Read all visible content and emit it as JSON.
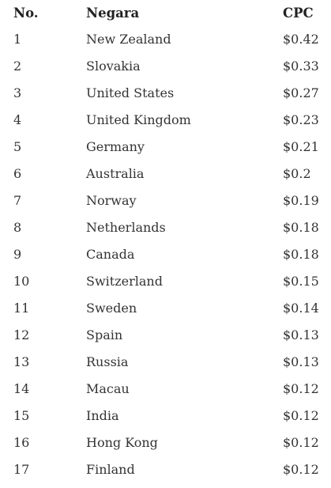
{
  "table": {
    "headers": {
      "no": "No.",
      "country": "Negara",
      "cpc": "CPC"
    },
    "rows": [
      {
        "no": "1",
        "country": "New Zealand",
        "cpc": "$0.42"
      },
      {
        "no": "2",
        "country": "Slovakia",
        "cpc": "$0.33"
      },
      {
        "no": "3",
        "country": "United States",
        "cpc": "$0.27"
      },
      {
        "no": "4",
        "country": "United Kingdom",
        "cpc": "$0.23"
      },
      {
        "no": "5",
        "country": "Germany",
        "cpc": "$0.21"
      },
      {
        "no": "6",
        "country": "Australia",
        "cpc": "$0.2"
      },
      {
        "no": "7",
        "country": "Norway",
        "cpc": "$0.19"
      },
      {
        "no": "8",
        "country": "Netherlands",
        "cpc": "$0.18"
      },
      {
        "no": "9",
        "country": "Canada",
        "cpc": "$0.18"
      },
      {
        "no": "10",
        "country": "Switzerland",
        "cpc": "$0.15"
      },
      {
        "no": "11",
        "country": "Sweden",
        "cpc": "$0.14"
      },
      {
        "no": "12",
        "country": "Spain",
        "cpc": "$0.13"
      },
      {
        "no": "13",
        "country": "Russia",
        "cpc": "$0.13"
      },
      {
        "no": "14",
        "country": "Macau",
        "cpc": "$0.12"
      },
      {
        "no": "15",
        "country": "India",
        "cpc": "$0.12"
      },
      {
        "no": "16",
        "country": "Hong Kong",
        "cpc": "$0.12"
      },
      {
        "no": "17",
        "country": "Finland",
        "cpc": "$0.12"
      }
    ]
  }
}
